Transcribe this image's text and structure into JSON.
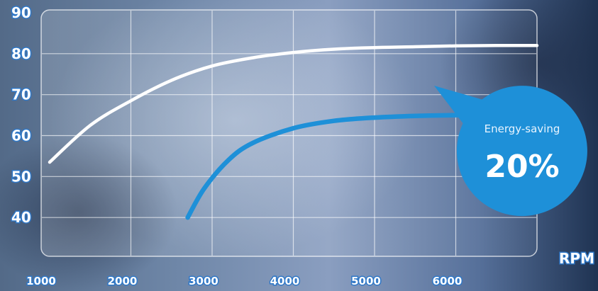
{
  "chart_data": {
    "type": "line",
    "x_unit_label": "RPM",
    "x_ticks": [
      "1000",
      "2000",
      "3000",
      "4000",
      "5000",
      "6000"
    ],
    "y_ticks": [
      "90",
      "80",
      "70",
      "60",
      "50",
      "40"
    ],
    "xlim": [
      1000,
      7000
    ],
    "ylim": [
      30,
      90
    ],
    "grid": true,
    "series": [
      {
        "color": "#ffffff",
        "x": [
          1000,
          1500,
          2000,
          2500,
          3000,
          3500,
          4000,
          4500,
          5000,
          5500,
          6000,
          6500,
          7000
        ],
        "y": [
          53.5,
          62.5,
          68.5,
          73.5,
          77,
          79,
          80.3,
          81.1,
          81.5,
          81.7,
          81.9,
          82,
          82
        ]
      },
      {
        "color": "#1e90d8",
        "x": [
          2700,
          2900,
          3200,
          3500,
          4000,
          4500,
          5000,
          5500,
          6000,
          6300
        ],
        "y": [
          40,
          47,
          54,
          58.2,
          61.8,
          63.6,
          64.4,
          64.8,
          65,
          65
        ]
      }
    ],
    "annotations": [
      {
        "label": "Energy-saving",
        "value": "20%",
        "color": "#1e90d8"
      }
    ]
  }
}
